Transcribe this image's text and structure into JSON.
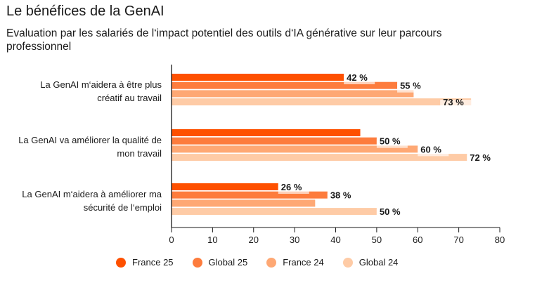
{
  "header": {
    "title": "Le bénéfices de la GenAI",
    "subtitle": "Evaluation par les salariés de l‘impact potentiel des outils d‘IA générative sur leur parcours professionnel"
  },
  "chart_data": {
    "type": "bar",
    "orientation": "horizontal",
    "title": "Le bénéfices de la GenAI",
    "subtitle": "Evaluation par les salariés de l‘impact potentiel des outils d‘IA générative sur leur parcours professionnel",
    "categories": [
      "La GenAI m‘aidera à être plus créatif au travail",
      "La GenAI va améliorer la qualité de mon travail",
      "La GenAI m‘aidera à améliorer ma sécurité de l‘emploi"
    ],
    "category_lines": [
      [
        "La GenAI m‘aidera à être plus",
        "créatif au travail"
      ],
      [
        "La GenAI va améliorer la qualité de",
        "mon travail"
      ],
      [
        "La GenAI m‘aidera à améliorer ma",
        "sécurité de l‘emploi"
      ]
    ],
    "series": [
      {
        "name": "France 25",
        "color": "#fe5000",
        "values": [
          42,
          46,
          26
        ],
        "labels": [
          "42 %",
          null,
          "26 %"
        ]
      },
      {
        "name": "Global 25",
        "color": "#fd7c3d",
        "values": [
          55,
          50,
          38
        ],
        "labels": [
          "55 %",
          "50 %",
          "38 %"
        ]
      },
      {
        "name": "France 24",
        "color": "#fea874",
        "values": [
          59,
          60,
          35
        ],
        "labels": [
          null,
          "60 %",
          null
        ]
      },
      {
        "name": "Global 24",
        "color": "#fecba6",
        "values": [
          73,
          72,
          50
        ],
        "labels": [
          "73 %",
          "72 %",
          "50 %"
        ]
      }
    ],
    "xlim": [
      0,
      80
    ],
    "xticks": [
      0,
      10,
      20,
      30,
      40,
      50,
      60,
      70,
      80
    ],
    "xlabel": "",
    "ylabel": "",
    "grid": false,
    "legend_position": "bottom"
  }
}
